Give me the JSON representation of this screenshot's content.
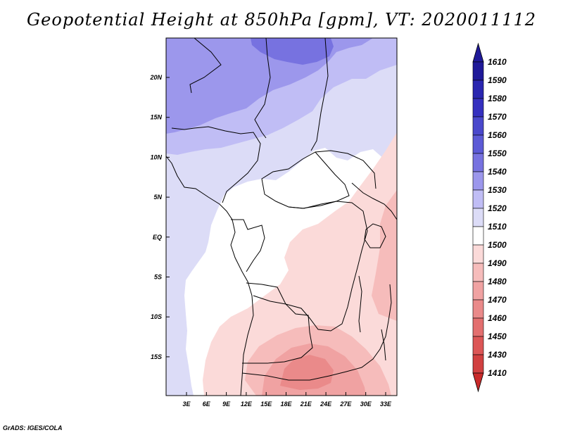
{
  "title": "Geopotential Height at 850hPa [gpm], VT: 2020011112",
  "footer": "GrADS: IGES/COLA",
  "map": {
    "lat_labels": [
      "20N",
      "15N",
      "10N",
      "5N",
      "EQ",
      "5S",
      "10S",
      "15S"
    ],
    "lon_labels": [
      "3E",
      "6E",
      "9E",
      "12E",
      "15E",
      "18E",
      "21E",
      "24E",
      "27E",
      "30E",
      "33E"
    ]
  },
  "colorbar": {
    "levels": [
      1610,
      1590,
      1580,
      1570,
      1560,
      1550,
      1540,
      1530,
      1520,
      1510,
      1500,
      1490,
      1480,
      1470,
      1460,
      1450,
      1430,
      1410
    ],
    "level_labels": [
      "1610",
      "1590",
      "1580",
      "1570",
      "1560",
      "1550",
      "1540",
      "1530",
      "1520",
      "1510",
      "1500",
      "1490",
      "1480",
      "1470",
      "1460",
      "1450",
      "1430",
      "1410"
    ],
    "colors": [
      "#1f1999",
      "#2a26b0",
      "#3530bf",
      "#4a48cc",
      "#5c5ad6",
      "#7772e0",
      "#9c97ec",
      "#c0bdf5",
      "#dcdcf7",
      "#ffffff",
      "#fbdad9",
      "#f6bcbb",
      "#f0a2a2",
      "#ea8a8a",
      "#e36f6f",
      "#dc5656",
      "#d14040",
      "#c92a2a"
    ]
  }
}
